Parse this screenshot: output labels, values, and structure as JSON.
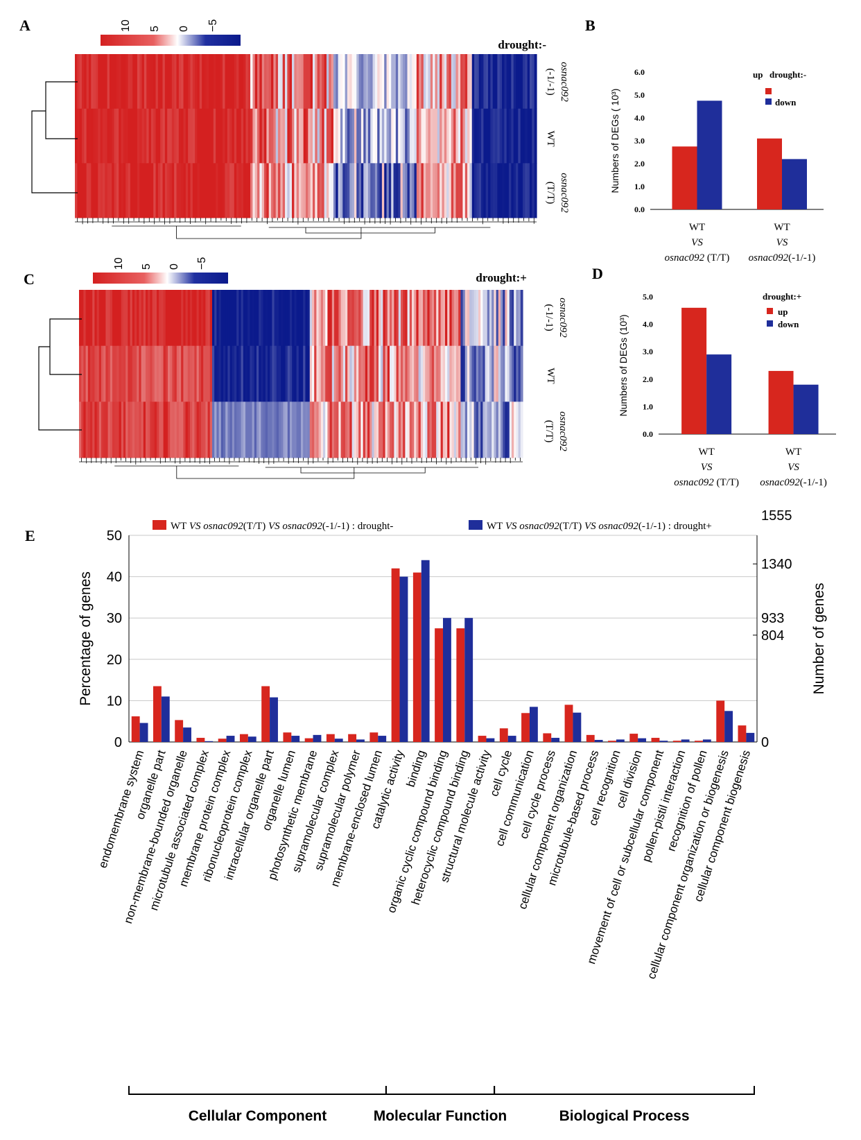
{
  "figure": {
    "panel_labels": [
      "A",
      "B",
      "C",
      "D",
      "E"
    ]
  },
  "colors": {
    "up_red": "#d7261e",
    "down_blue": "#1f2e9a",
    "heat_red": "#d42020",
    "heat_blue": "#0b1a8c",
    "axis": "#000000",
    "grid": "#c8c8c8"
  },
  "heatmaps": [
    {
      "panel": "A",
      "title": "drought:-",
      "colorbar_ticks": [
        "10",
        "5",
        "0",
        "−5"
      ],
      "rows": [
        {
          "name": "osnac092",
          "suffix": "(-1/-1)"
        },
        {
          "name": "WT",
          "suffix": ""
        },
        {
          "name": "osnac092",
          "suffix": "(T/T)"
        }
      ],
      "segments": [
        {
          "from": 0.0,
          "to": 0.38,
          "rows": [
            1,
            1,
            1
          ],
          "pattern": "red"
        },
        {
          "from": 0.38,
          "to": 0.56,
          "rows": [
            0.9,
            0.7,
            0.55
          ],
          "pattern": "mixed-red"
        },
        {
          "from": 0.56,
          "to": 0.74,
          "rows": [
            -0.25,
            -0.35,
            -0.6
          ],
          "pattern": "mixed-blue"
        },
        {
          "from": 0.74,
          "to": 0.86,
          "rows": [
            0.55,
            0.5,
            0.5
          ],
          "pattern": "mixed-red"
        },
        {
          "from": 0.86,
          "to": 1.0,
          "rows": [
            -0.95,
            -1,
            -1
          ],
          "pattern": "blue"
        }
      ]
    },
    {
      "panel": "C",
      "title": "drought:+",
      "colorbar_ticks": [
        "10",
        "5",
        "0",
        "−5"
      ],
      "rows": [
        {
          "name": "osnac092",
          "suffix": "(-1/-1)"
        },
        {
          "name": "WT",
          "suffix": ""
        },
        {
          "name": "osnac092",
          "suffix": "(T/T)"
        }
      ],
      "segments": [
        {
          "from": 0.0,
          "to": 0.3,
          "rows": [
            1,
            0.8,
            0.85
          ],
          "pattern": "red"
        },
        {
          "from": 0.3,
          "to": 0.52,
          "rows": [
            -1,
            -0.95,
            -0.55
          ],
          "pattern": "blue"
        },
        {
          "from": 0.52,
          "to": 0.86,
          "rows": [
            0.6,
            0.6,
            0.55
          ],
          "pattern": "mixed-red"
        },
        {
          "from": 0.86,
          "to": 1.0,
          "rows": [
            -0.45,
            -0.5,
            -0.5
          ],
          "pattern": "mixed-blue"
        }
      ]
    }
  ],
  "chart_data": [
    {
      "panel": "B",
      "type": "bar",
      "title": "",
      "legend": [
        "up",
        "drought:-",
        "down"
      ],
      "legend_placement": "top-right",
      "ylabel": "Numbers of  DEGs ( 10³)",
      "ytick_labels": [
        "0.0",
        "1.0",
        "2.0",
        "3.0",
        "4.0",
        "5.0",
        "6.0"
      ],
      "ylim": [
        0,
        6
      ],
      "categories": [
        {
          "line1": "WT",
          "line2": "VS",
          "line3_italic": "osnac092",
          "line3_rest": " (T/T)"
        },
        {
          "line1": "WT",
          "line2": "VS",
          "line3_italic": "osnac092",
          "line3_rest": "(-1/-1)"
        }
      ],
      "series": [
        {
          "name": "up",
          "values": [
            2.75,
            3.1
          ]
        },
        {
          "name": "down",
          "values": [
            4.75,
            2.2
          ]
        }
      ]
    },
    {
      "panel": "D",
      "type": "bar",
      "title": "",
      "legend": [
        "drought:+",
        "up",
        "down"
      ],
      "legend_placement": "top-right",
      "ylabel": "Numbers of  DEGs (10³)",
      "ytick_labels": [
        "0.0",
        "1.0",
        "2.0",
        "3.0",
        "4.0",
        "5.0"
      ],
      "ylim": [
        0,
        5
      ],
      "categories": [
        {
          "line1": "WT",
          "line2": "VS",
          "line3_italic": "osnac092",
          "line3_rest": " (T/T)"
        },
        {
          "line1": "WT",
          "line2": "VS",
          "line3_italic": "osnac092",
          "line3_rest": "(-1/-1)"
        }
      ],
      "series": [
        {
          "name": "up",
          "values": [
            4.6,
            2.3
          ]
        },
        {
          "name": "down",
          "values": [
            2.9,
            1.8
          ]
        }
      ]
    },
    {
      "panel": "E",
      "type": "bar",
      "ylabel": "Percentage of genes",
      "y2label": "Number of genes",
      "ylim": [
        0,
        50
      ],
      "yticks": [
        "0",
        "10",
        "20",
        "30",
        "40",
        "50"
      ],
      "y2_ticks": [
        "0",
        "804",
        "933",
        "1340",
        "1555"
      ],
      "legend": [
        {
          "prefix": "WT ",
          "vs1": "VS",
          "mid_italic": " osnac092",
          "mid": "(T/T)  ",
          "vs2": "VS",
          "end_italic": " osnac092",
          "end": "(-1/-1) : drought-"
        },
        {
          "prefix": "WT ",
          "vs1": "VS",
          "mid_italic": " osnac092",
          "mid": "(T/T)  ",
          "vs2": "VS",
          "end_italic": " osnac092",
          "end": "(-1/-1) : drought+"
        }
      ],
      "categories": [
        "endomembrane system",
        "organelle part",
        "non-membrane-bounded organelle",
        "microtubule associated complex",
        "membrane protein complex",
        "ribonucleoprotein complex",
        "intracellular organelle part",
        "organelle lumen",
        "photosynthetic membrane",
        "supramolecular complex",
        "supramolecular polymer",
        "membrane-enclosed lumen",
        "catalytic activity",
        "binding",
        "organic cyclic compound binding",
        "heterocyclic compound binding",
        "structural molecule activity",
        "cell cycle",
        "cell communication",
        "cell cycle process",
        "cellular component organization",
        "microtubule-based process",
        "cell recognition",
        "cell division",
        "movement of cell or subcellular component",
        "pollen-pistil interaction",
        "recognition of pollen",
        "cellular component organization or biogenesis",
        "cellular component biogenesis"
      ],
      "series": [
        {
          "name": "drought-",
          "values": [
            6.2,
            13.5,
            5.3,
            1.0,
            0.8,
            1.9,
            13.5,
            2.3,
            0.9,
            1.9,
            1.9,
            2.3,
            42.0,
            41.0,
            27.5,
            27.5,
            1.5,
            3.3,
            7.0,
            2.1,
            9.0,
            1.7,
            0.3,
            2.0,
            1.0,
            0.3,
            0.3,
            10.0,
            4.0
          ]
        },
        {
          "name": "drought+",
          "values": [
            4.6,
            11.0,
            3.5,
            0.2,
            1.5,
            1.3,
            10.8,
            1.5,
            1.7,
            0.8,
            0.6,
            1.5,
            40.0,
            44.0,
            30.0,
            30.0,
            0.9,
            1.5,
            8.5,
            1.0,
            7.1,
            0.5,
            0.6,
            0.9,
            0.3,
            0.6,
            0.6,
            7.5,
            2.2
          ]
        }
      ],
      "groups": [
        {
          "label": "Cellular Component",
          "from": 0,
          "to": 11
        },
        {
          "label": "Molecular Function",
          "from": 12,
          "to": 16
        },
        {
          "label": "Biological Process",
          "from": 17,
          "to": 28
        }
      ]
    }
  ]
}
